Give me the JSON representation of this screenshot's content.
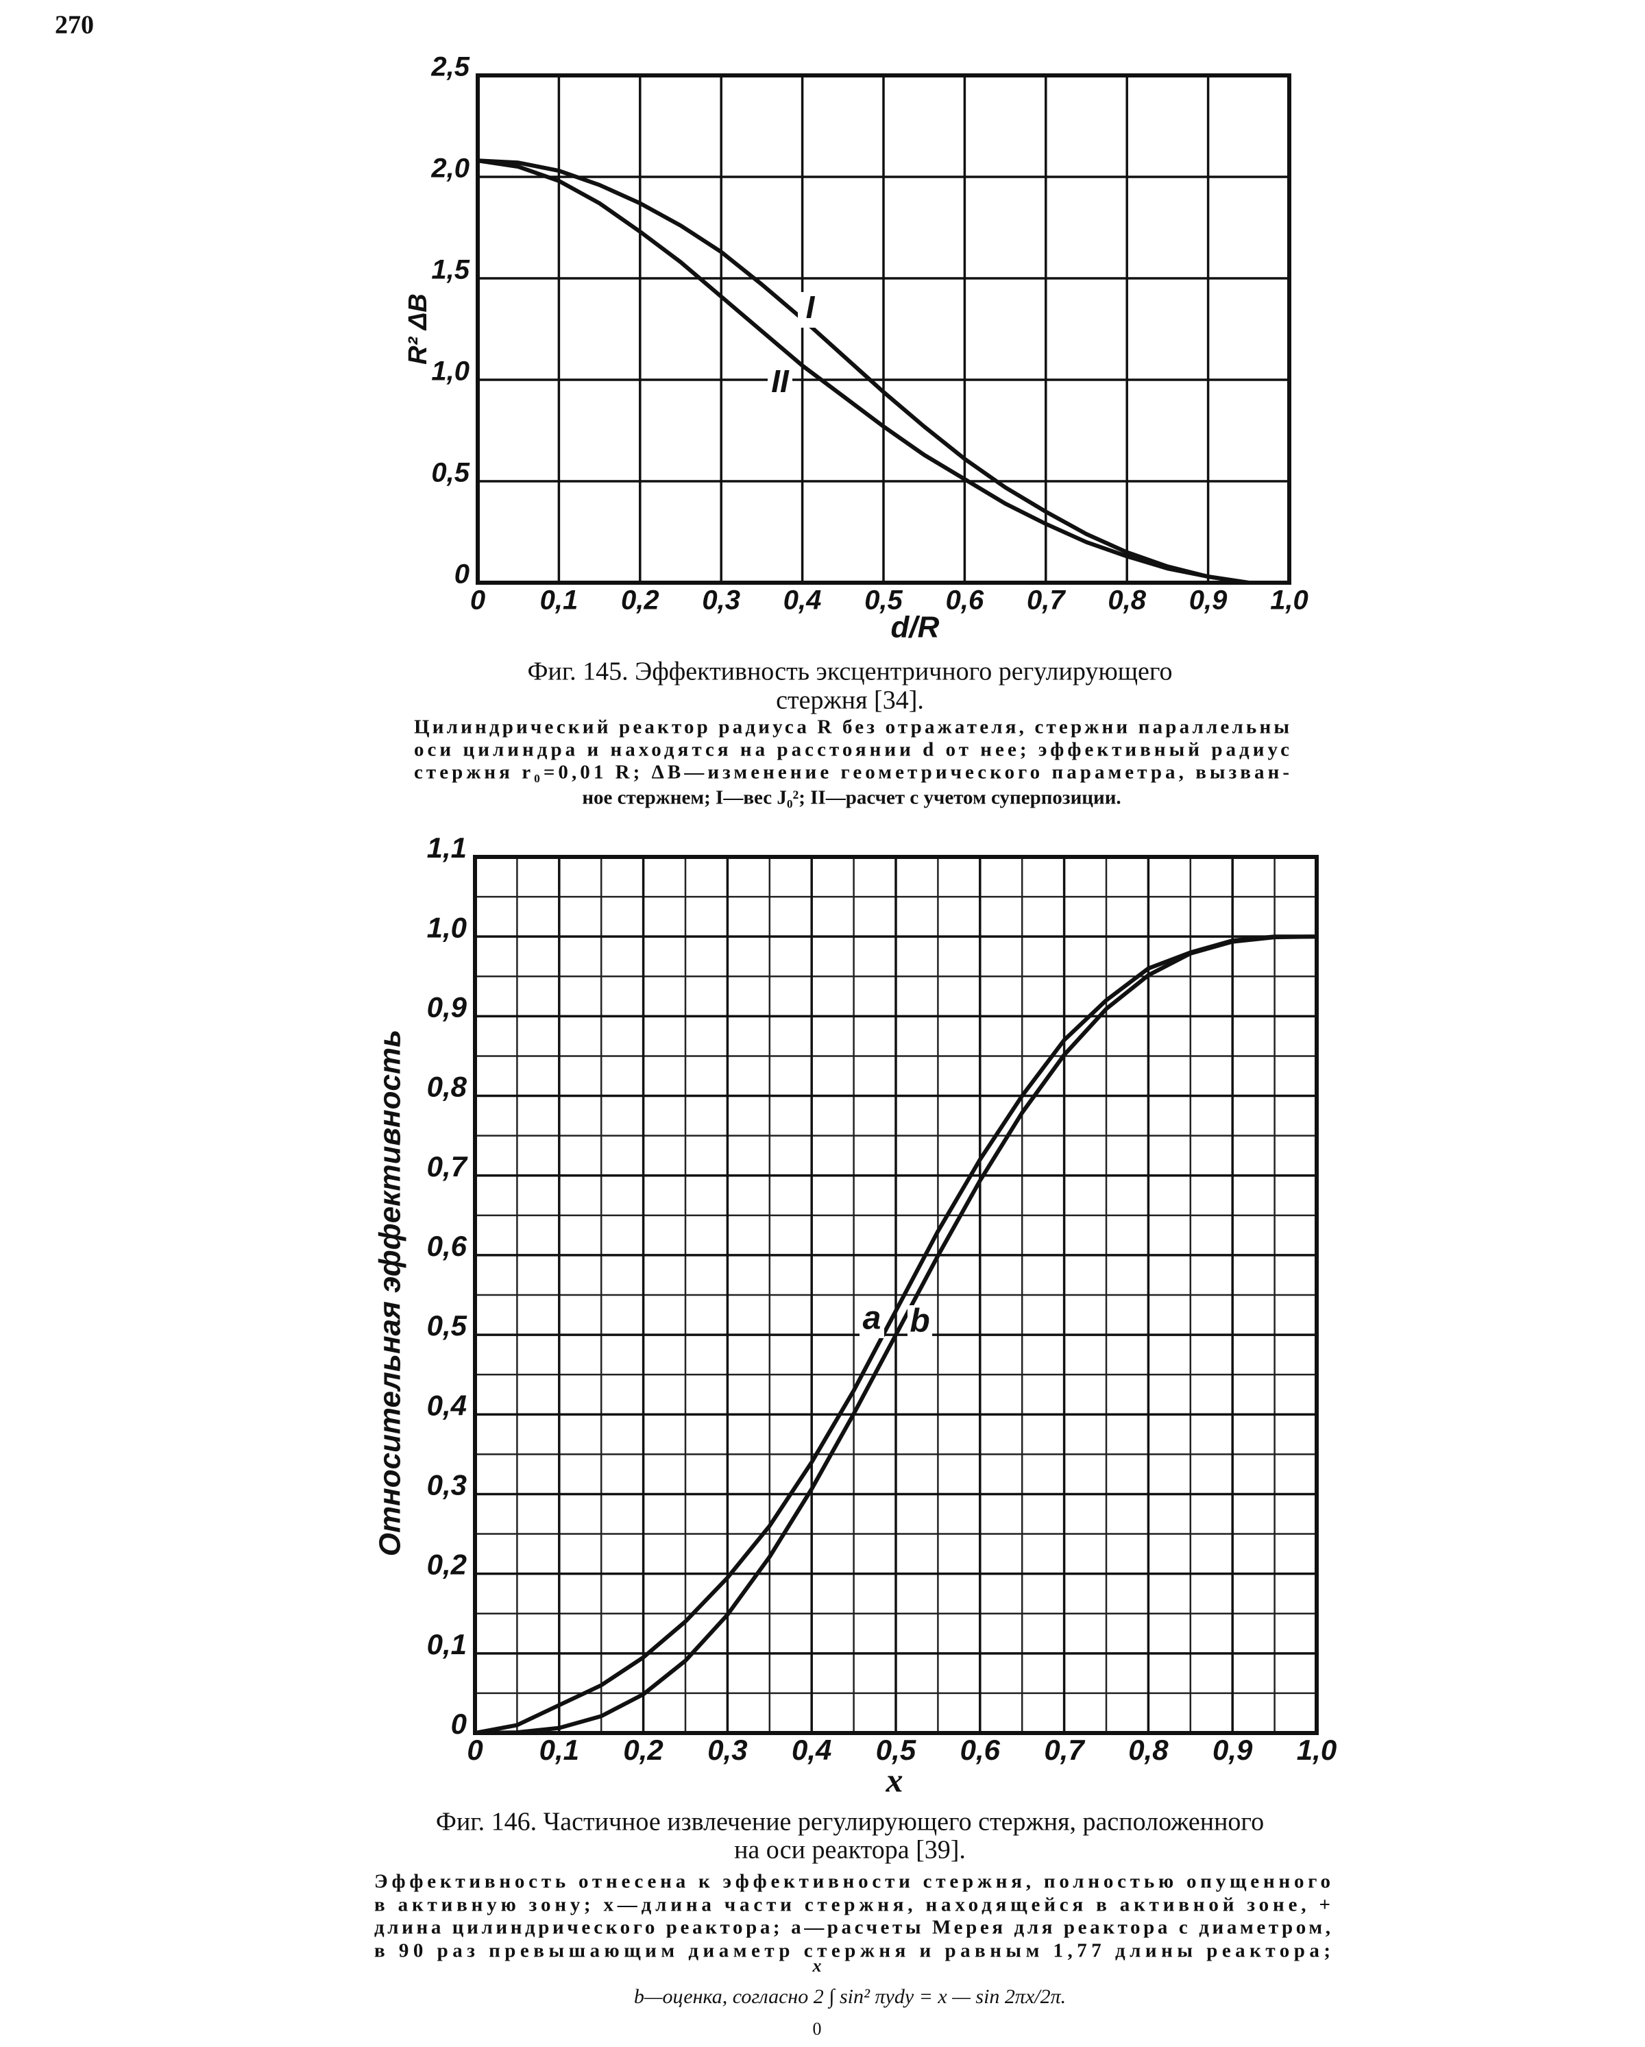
{
  "page_number": "270",
  "chart_data": [
    {
      "type": "line",
      "xlabel": "d/R",
      "ylabel": "R² ΔB",
      "caption": [
        "Фиг. 145. Эффективность эксцентричного регулирующего",
        "стержня [34]."
      ],
      "note": [
        "Цилиндрический реактор радиуса R без отражателя, стержни параллельны",
        "оси цилиндра и находятся на расстоянии d от нее; эффективный радиус",
        "стержня r₀=0,01 R; ΔB—изменение геометрического параметра, вызван-",
        "ное стержнем; I—вес J₀²; II—расчет с учетом суперпозиции."
      ],
      "x": [
        0,
        0.05,
        0.1,
        0.15,
        0.2,
        0.25,
        0.3,
        0.35,
        0.4,
        0.45,
        0.5,
        0.55,
        0.6,
        0.65,
        0.7,
        0.75,
        0.8,
        0.85,
        0.9,
        0.95
      ],
      "series": [
        {
          "name": "I",
          "color": "#111111",
          "values": [
            2.08,
            2.07,
            2.03,
            1.96,
            1.87,
            1.76,
            1.63,
            1.47,
            1.3,
            1.12,
            0.94,
            0.77,
            0.61,
            0.47,
            0.35,
            0.24,
            0.15,
            0.08,
            0.03,
            0
          ]
        },
        {
          "name": "II",
          "color": "#111111",
          "values": [
            2.08,
            2.05,
            1.98,
            1.87,
            1.73,
            1.58,
            1.41,
            1.24,
            1.07,
            0.92,
            0.77,
            0.63,
            0.51,
            0.39,
            0.29,
            0.2,
            0.13,
            0.07,
            0.03,
            0
          ]
        }
      ],
      "xlim": [
        0,
        1
      ],
      "ylim": [
        0,
        2.5
      ],
      "xticks": [
        0,
        {
          "value": 0.1,
          "label": "0,1"
        },
        {
          "value": 0.2,
          "label": "0,2"
        },
        {
          "value": 0.3,
          "label": "0,3"
        },
        {
          "value": 0.4,
          "label": "0,4"
        },
        {
          "value": 0.5,
          "label": "0,5"
        },
        {
          "value": 0.6,
          "label": "0,6"
        },
        {
          "value": 0.7,
          "label": "0,7"
        },
        {
          "value": 0.8,
          "label": "0,8"
        },
        {
          "value": 0.9,
          "label": "0,9"
        },
        {
          "value": 1,
          "label": "1,0"
        }
      ],
      "yticks": [
        0,
        {
          "value": 0.5,
          "label": "0,5"
        },
        {
          "value": 1,
          "label": "1,0"
        },
        {
          "value": 1.5,
          "label": "1,5"
        },
        {
          "value": 2,
          "label": "2,0"
        },
        {
          "value": 2.5,
          "label": "2,5"
        }
      ],
      "grid": true
    },
    {
      "type": "line",
      "xlabel": "x",
      "ylabel": "Относительная эффективность",
      "caption": [
        "Фиг. 146. Частичное извлечение регулирующего стержня, расположенного",
        "на оси реактора [39]."
      ],
      "note": [
        "Эффективность отнесена к эффективности стержня, полностью опущенного",
        "в активную зону; x—длина части стержня, находящейся в активной зоне, +",
        "длина цилиндрического реактора; a—расчеты Мерея для реактора с диаметром,",
        "в 90 раз превышающим диаметр стержня и равным 1,77 длины реактора;"
      ],
      "formula": "b—оценка, согласно 2 ∫ sin² πydy = x — sin 2πx/2π.",
      "formula_upper": "x",
      "formula_lower": "0",
      "x": [
        0,
        0.05,
        0.1,
        0.15,
        0.2,
        0.25,
        0.3,
        0.35,
        0.4,
        0.45,
        0.5,
        0.55,
        0.6,
        0.65,
        0.7,
        0.75,
        0.8,
        0.85,
        0.9,
        0.95,
        1
      ],
      "series": [
        {
          "name": "a",
          "color": "#111111",
          "values": [
            0,
            0.01,
            0.035,
            0.06,
            0.095,
            0.14,
            0.195,
            0.26,
            0.34,
            0.43,
            0.53,
            0.63,
            0.72,
            0.8,
            0.87,
            0.92,
            0.96,
            0.98,
            0.995,
            1,
            1
          ]
        },
        {
          "name": "b",
          "color": "#111111",
          "values": [
            0,
            0.0008,
            0.0064,
            0.0212,
            0.0486,
            0.0908,
            0.1486,
            0.2212,
            0.3064,
            0.4008,
            0.5,
            0.5992,
            0.6936,
            0.7788,
            0.8514,
            0.9092,
            0.9514,
            0.9788,
            0.9936,
            0.9992,
            1
          ]
        }
      ],
      "xlim": [
        0,
        1
      ],
      "ylim": [
        0,
        1.1
      ],
      "xticks": [
        0,
        {
          "value": 0.1,
          "label": "0,1"
        },
        {
          "value": 0.2,
          "label": "0,2"
        },
        {
          "value": 0.3,
          "label": "0,3"
        },
        {
          "value": 0.4,
          "label": "0,4"
        },
        {
          "value": 0.5,
          "label": "0,5"
        },
        {
          "value": 0.6,
          "label": "0,6"
        },
        {
          "value": 0.7,
          "label": "0,7"
        },
        {
          "value": 0.8,
          "label": "0,8"
        },
        {
          "value": 0.9,
          "label": "0,9"
        },
        {
          "value": 1,
          "label": "1,0"
        }
      ],
      "yticks": [
        0,
        {
          "value": 0.1,
          "label": "0,1"
        },
        {
          "value": 0.2,
          "label": "0,2"
        },
        {
          "value": 0.3,
          "label": "0,3"
        },
        {
          "value": 0.4,
          "label": "0,4"
        },
        {
          "value": 0.5,
          "label": "0,5"
        },
        {
          "value": 0.6,
          "label": "0,6"
        },
        {
          "value": 0.7,
          "label": "0,7"
        },
        {
          "value": 0.8,
          "label": "0,8"
        },
        {
          "value": 0.9,
          "label": "0,9"
        },
        {
          "value": 1,
          "label": "1,0"
        },
        {
          "value": 1.1,
          "label": "1,1"
        }
      ],
      "xminorticks": [
        0.05,
        0.15,
        0.25,
        0.35,
        0.45,
        0.55,
        0.65,
        0.75,
        0.85,
        0.95
      ],
      "yminorticks": [
        0.05,
        0.15,
        0.25,
        0.35,
        0.45,
        0.55,
        0.65,
        0.75,
        0.85,
        0.95,
        1.05
      ],
      "grid": true
    }
  ]
}
